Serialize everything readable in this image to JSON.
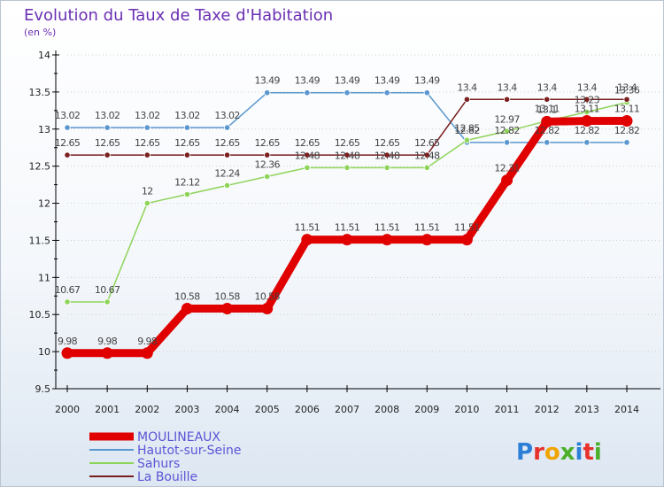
{
  "chart_data": {
    "type": "line",
    "title": "Evolution du Taux de Taxe d'Habitation",
    "subtitle": "(en %)",
    "x": [
      "2000",
      "2001",
      "2002",
      "2003",
      "2004",
      "2005",
      "2006",
      "2007",
      "2008",
      "2009",
      "2010",
      "2011",
      "2012",
      "2013",
      "2014"
    ],
    "ylim": [
      9.5,
      14
    ],
    "yticks": [
      "9.5",
      "10",
      "10.5",
      "11",
      "11.5",
      "12",
      "12.5",
      "13",
      "13.5",
      "14"
    ],
    "series": [
      {
        "name": "MOULINEAUX",
        "color": "#e00000",
        "values": [
          9.98,
          9.98,
          9.98,
          10.58,
          10.58,
          10.58,
          11.51,
          11.51,
          11.51,
          11.51,
          11.51,
          12.31,
          13.1,
          13.11,
          13.11
        ],
        "labels": [
          "9.98",
          "9.98",
          "9.98",
          "10.58",
          "10.58",
          "10.58",
          "11.51",
          "11.51",
          "11.51",
          "11.51",
          "11.51",
          "12.31",
          "13.1",
          "13.11",
          "13.11"
        ]
      },
      {
        "name": "Hautot-sur-Seine",
        "color": "#5b97cf",
        "values": [
          13.02,
          13.02,
          13.02,
          13.02,
          13.02,
          13.49,
          13.49,
          13.49,
          13.49,
          13.49,
          12.82,
          12.82,
          12.82,
          12.82,
          12.82
        ],
        "labels": [
          "13.02",
          "13.02",
          "13.02",
          "13.02",
          "13.02",
          "13.49",
          "13.49",
          "13.49",
          "13.49",
          "13.49",
          "12.82",
          "12.82",
          "12.82",
          "12.82",
          "12.82"
        ]
      },
      {
        "name": "Sahurs",
        "color": "#8fd45a",
        "values": [
          10.67,
          10.67,
          12,
          12.12,
          12.24,
          12.36,
          12.48,
          12.48,
          12.48,
          12.48,
          12.85,
          12.97,
          13.11,
          13.23,
          13.36
        ],
        "labels": [
          "10.67",
          "10.67",
          "12",
          "12.12",
          "12.24",
          "12.36",
          "12.48",
          "12.48",
          "12.48",
          "12.48",
          "12.85",
          "12.97",
          "13.11",
          "13.23",
          "13.36"
        ]
      },
      {
        "name": "La Bouille",
        "color": "#7a1f1f",
        "values": [
          12.65,
          12.65,
          12.65,
          12.65,
          12.65,
          12.65,
          12.65,
          12.65,
          12.65,
          12.65,
          13.4,
          13.4,
          13.4,
          13.4,
          13.4
        ],
        "labels": [
          "12.65",
          "12.65",
          "12.65",
          "12.65",
          "12.65",
          "12.65",
          "12.65",
          "12.65",
          "12.65",
          "12.65",
          "13.4",
          "13.4",
          "13.4",
          "13.4",
          "13.4"
        ]
      }
    ]
  },
  "brand": {
    "text": "Proxiti",
    "letters": [
      "P",
      "r",
      "o",
      "x",
      "i",
      "t",
      "i"
    ],
    "colors": [
      "#2c7fd6",
      "#e8312b",
      "#f0a400",
      "#4caf2a",
      "#2c7fd6",
      "#e8312b",
      "#4caf2a"
    ]
  }
}
